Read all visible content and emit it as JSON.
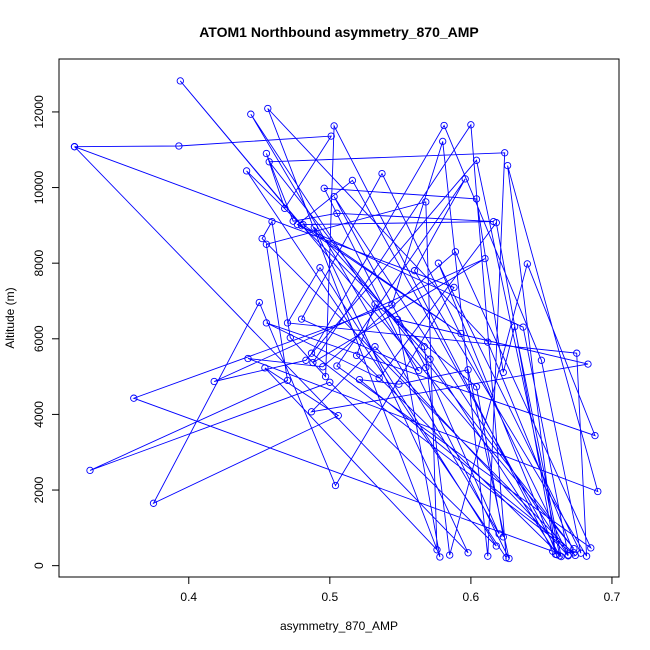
{
  "chart_data": {
    "type": "line",
    "title": "ATOM1 Northbound asymmetry_870_AMP",
    "xlabel": "asymmetry_870_AMP",
    "ylabel": "Altitude (m)",
    "xlim": [
      0.308,
      0.705
    ],
    "ylim": [
      -300,
      13400
    ],
    "xticks": [
      0.4,
      0.5,
      0.6,
      0.7
    ],
    "yticks": [
      0,
      2000,
      4000,
      6000,
      8000,
      10000,
      12000
    ],
    "xtick_labels": [
      "0.4",
      "0.5",
      "0.6",
      "0.7"
    ],
    "ytick_labels": [
      "0",
      "2000",
      "4000",
      "6000",
      "8000",
      "10000",
      "12000"
    ],
    "grid": false,
    "legend": "none",
    "color": "#0000ff",
    "markers": "open-circle",
    "series": [
      {
        "points": [
          [
            0.319,
            11080
          ],
          [
            0.393,
            11100
          ],
          [
            0.501,
            11360
          ],
          [
            0.468,
            9450
          ],
          [
            0.455,
            10900
          ],
          [
            0.474,
            9110
          ],
          [
            0.505,
            9320
          ],
          [
            0.616,
            9100
          ],
          [
            0.481,
            9020
          ],
          [
            0.593,
            6140
          ],
          [
            0.48,
            8990
          ],
          [
            0.394,
            12820
          ],
          [
            0.673,
            450
          ],
          [
            0.457,
            10680
          ],
          [
            0.624,
            10920
          ],
          [
            0.612,
            250
          ],
          [
            0.58,
            11220
          ],
          [
            0.544,
            6900
          ],
          [
            0.361,
            4430
          ],
          [
            0.658,
            380
          ],
          [
            0.503,
            11630
          ],
          [
            0.497,
            5000
          ],
          [
            0.472,
            6030
          ],
          [
            0.459,
            9100
          ],
          [
            0.452,
            8650
          ],
          [
            0.674,
            270
          ],
          [
            0.487,
            5620
          ],
          [
            0.581,
            11640
          ],
          [
            0.65,
            5430
          ],
          [
            0.678,
            330
          ],
          [
            0.577,
            8000
          ],
          [
            0.661,
            290
          ],
          [
            0.571,
            5460
          ],
          [
            0.489,
            8950
          ],
          [
            0.598,
            340
          ],
          [
            0.319,
            11080
          ],
          [
            0.588,
            7360
          ],
          [
            0.504,
            2120
          ],
          [
            0.45,
            6960
          ],
          [
            0.375,
            1650
          ],
          [
            0.506,
            3970
          ],
          [
            0.454,
            5230
          ],
          [
            0.576,
            420
          ],
          [
            0.568,
            9620
          ],
          [
            0.455,
            8500
          ],
          [
            0.47,
            4900
          ],
          [
            0.33,
            2520
          ],
          [
            0.5,
            4850
          ],
          [
            0.618,
            520
          ],
          [
            0.493,
            7880
          ],
          [
            0.47,
            6420
          ],
          [
            0.675,
            5620
          ],
          [
            0.682,
            250
          ],
          [
            0.56,
            7800
          ],
          [
            0.596,
            10230
          ],
          [
            0.505,
            5280
          ],
          [
            0.685,
            470
          ],
          [
            0.589,
            8300
          ],
          [
            0.495,
            5260
          ],
          [
            0.442,
            5480
          ],
          [
            0.69,
            1960
          ],
          [
            0.626,
            10580
          ],
          [
            0.66,
            300
          ],
          [
            0.618,
            9070
          ],
          [
            0.535,
            4960
          ],
          [
            0.455,
            6420
          ],
          [
            0.688,
            3440
          ],
          [
            0.64,
            7980
          ],
          [
            0.585,
            280
          ],
          [
            0.567,
            5790
          ],
          [
            0.441,
            10440
          ],
          [
            0.625,
            210
          ],
          [
            0.6,
            11660
          ],
          [
            0.488,
            5370
          ],
          [
            0.61,
            8120
          ],
          [
            0.418,
            4870
          ],
          [
            0.483,
            5430
          ],
          [
            0.604,
            10720
          ],
          [
            0.663,
            260
          ],
          [
            0.516,
            10190
          ],
          [
            0.477,
            9020
          ],
          [
            0.637,
            6310
          ],
          [
            0.669,
            280
          ],
          [
            0.537,
            10370
          ],
          [
            0.48,
            6520
          ],
          [
            0.563,
            5160
          ],
          [
            0.444,
            11940
          ],
          [
            0.62,
            840
          ],
          [
            0.568,
            5240
          ],
          [
            0.503,
            9760
          ],
          [
            0.669,
            260
          ],
          [
            0.532,
            5790
          ],
          [
            0.487,
            4070
          ],
          [
            0.683,
            5330
          ],
          [
            0.548,
            6510
          ],
          [
            0.578,
            230
          ],
          [
            0.456,
            12090
          ],
          [
            0.612,
            5910
          ],
          [
            0.673,
            340
          ],
          [
            0.521,
            4920
          ],
          [
            0.549,
            4800
          ],
          [
            0.598,
            5180
          ],
          [
            0.627,
            190
          ],
          [
            0.496,
            9980
          ],
          [
            0.604,
            9700
          ],
          [
            0.623,
            5110
          ],
          [
            0.631,
            6320
          ],
          [
            0.664,
            240
          ],
          [
            0.519,
            5560
          ],
          [
            0.532,
            6920
          ],
          [
            0.604,
            4730
          ],
          [
            0.623,
            760
          ]
        ]
      }
    ]
  }
}
